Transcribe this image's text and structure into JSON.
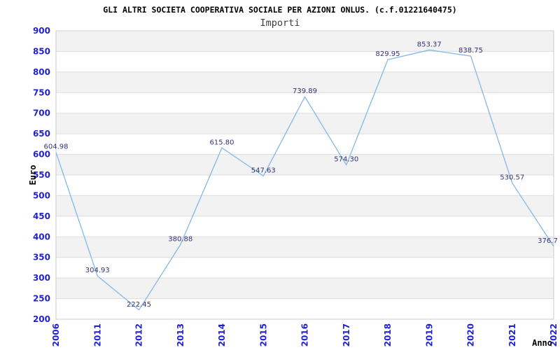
{
  "chart_data": {
    "type": "line",
    "title": "GLI ALTRI SOCIETA COOPERATIVA SOCIALE PER AZIONI ONLUS. (c.f.01221640475)",
    "subtitle": "Importi",
    "xlabel": "Anno",
    "ylabel": "Euro",
    "categories": [
      "2006",
      "2011",
      "2012",
      "2013",
      "2014",
      "2015",
      "2016",
      "2017",
      "2018",
      "2019",
      "2020",
      "2021",
      "2022"
    ],
    "values": [
      604.98,
      304.93,
      222.45,
      380.88,
      615.8,
      547.63,
      739.89,
      574.3,
      829.95,
      853.37,
      838.75,
      530.57,
      376.7
    ],
    "point_labels": [
      "604.98",
      "304.93",
      "222.45",
      "380.88",
      "615.80",
      "547.63",
      "739.89",
      "574.30",
      "829.95",
      "853.37",
      "838.75",
      "530.57",
      "376.7"
    ],
    "ylim": [
      200,
      900
    ],
    "ytick_step": 50,
    "grid": true,
    "legend_position": "none",
    "colors": {
      "line": "#85b7ea",
      "tick_label": "#2222cc",
      "point_label": "#333377",
      "band": "#f2f2f2",
      "grid_line": "#dddddd",
      "plot_border": "#cccccc",
      "title": "#000000",
      "subtitle": "#3d3d3d",
      "axis_label": "#000000"
    }
  }
}
